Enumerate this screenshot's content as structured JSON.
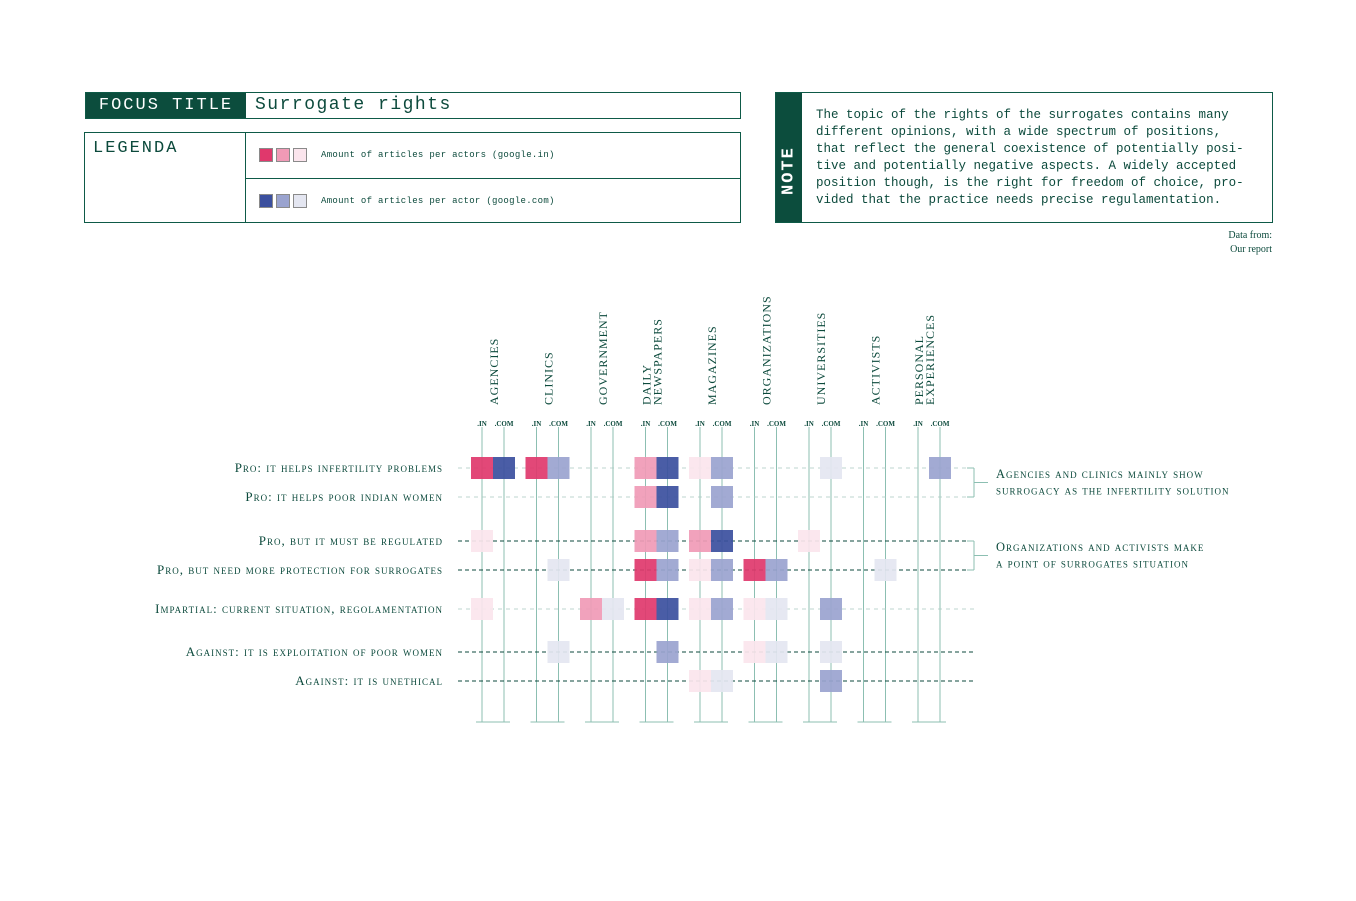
{
  "header": {
    "focus_tag": "FOCUS TITLE",
    "title": "Surrogate rights"
  },
  "legend": {
    "title": "LEGENDA",
    "in_label": "Amount of articles per actors (google.in)",
    "com_label": "Amount of articles per actor (google.com)",
    "in_colors": [
      "#e0386c",
      "#f09ab6",
      "#fbe5ed"
    ],
    "com_colors": [
      "#3b4f9e",
      "#9aa3cf",
      "#e4e6f1"
    ]
  },
  "note": {
    "tag": "NOTE",
    "text": "The topic of the rights of the surrogates contains many\ndifferent opinions, with a wide spectrum of positions,\nthat reflect the general coexistence of potentially posi-\ntive and potentially negative aspects. A widely accepted\nposition though, is the right for freedom of choice, pro-\nvided that the practice needs precise regulamentation."
  },
  "source": {
    "line1": "Data from:",
    "line2": "Our report"
  },
  "chart_data": {
    "type": "heatmap",
    "title": "",
    "sub_columns": [
      ".IN",
      ".COM"
    ],
    "scale": "3 levels: 3 = dark, 2 = medium, 1 = light, 0 = none",
    "columns": [
      {
        "label": [
          "AGENCIES"
        ]
      },
      {
        "label": [
          "CLINICS"
        ]
      },
      {
        "label": [
          "GOVERNMENT"
        ]
      },
      {
        "label": [
          "DAILY",
          "NEWSPAPERS"
        ]
      },
      {
        "label": [
          "MAGAZINES"
        ]
      },
      {
        "label": [
          "ORGANIZATIONS"
        ]
      },
      {
        "label": [
          "UNIVERSITIES"
        ]
      },
      {
        "label": [
          "ACTIVISTS"
        ]
      },
      {
        "label": [
          "PERSONAL",
          "EXPERIENCES"
        ]
      }
    ],
    "rows": [
      {
        "label": "Pro: it helps infertility problems",
        "line": "light",
        "in": [
          3,
          3,
          0,
          2,
          1,
          0,
          0,
          0,
          0
        ],
        "com": [
          3,
          2,
          0,
          3,
          2,
          0,
          1,
          0,
          2
        ]
      },
      {
        "label": "Pro: it helps poor indian women",
        "line": "light",
        "in": [
          0,
          0,
          0,
          2,
          0,
          0,
          0,
          0,
          0
        ],
        "com": [
          0,
          0,
          0,
          3,
          2,
          0,
          0,
          0,
          0
        ]
      },
      {
        "label": "Pro, but it must be regulated",
        "line": "dark",
        "in": [
          1,
          0,
          0,
          2,
          2,
          0,
          1,
          0,
          0
        ],
        "com": [
          0,
          0,
          0,
          2,
          3,
          0,
          0,
          0,
          0
        ]
      },
      {
        "label": "Pro, but need more protection for surrogates",
        "line": "dark",
        "in": [
          0,
          0,
          0,
          3,
          1,
          3,
          0,
          0,
          0
        ],
        "com": [
          0,
          1,
          0,
          2,
          2,
          2,
          0,
          1,
          0
        ]
      },
      {
        "label": "Impartial: current situation, regolamentation",
        "line": "light",
        "in": [
          1,
          0,
          2,
          3,
          1,
          1,
          0,
          0,
          0
        ],
        "com": [
          0,
          0,
          1,
          3,
          2,
          1,
          2,
          0,
          0
        ]
      },
      {
        "label": "Against: it is exploitation of poor women",
        "line": "dark",
        "in": [
          0,
          0,
          0,
          0,
          0,
          1,
          0,
          0,
          0
        ],
        "com": [
          0,
          1,
          0,
          2,
          0,
          1,
          1,
          0,
          0
        ]
      },
      {
        "label": "Against: it is unethical",
        "line": "dark",
        "in": [
          0,
          0,
          0,
          0,
          1,
          0,
          0,
          0,
          0
        ],
        "com": [
          0,
          0,
          0,
          0,
          1,
          0,
          2,
          0,
          0
        ]
      }
    ],
    "annotations": [
      {
        "rows": [
          0,
          1
        ],
        "lines": [
          "Agencies and clinics mainly show",
          "surrogacy as the infertility solution"
        ]
      },
      {
        "rows": [
          2,
          3
        ],
        "lines": [
          "Organizations and activists make",
          "a point of surrogates situation"
        ]
      }
    ]
  }
}
